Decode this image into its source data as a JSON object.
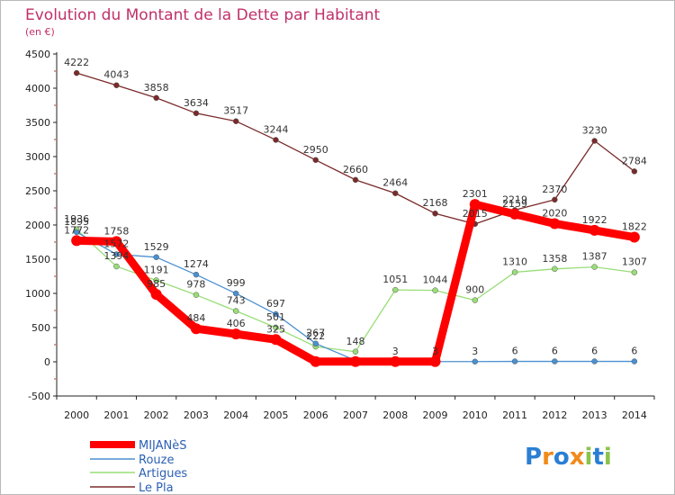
{
  "chart_data": {
    "type": "line",
    "title": "Evolution du Montant de la Dette par Habitant",
    "subtitle": "(en €)",
    "xlabel": "",
    "ylabel": "",
    "ylim": [
      -500,
      4500
    ],
    "ytick_step": 500,
    "grid": false,
    "legend_position": "bottom-left",
    "x": [
      "2000",
      "2001",
      "2002",
      "2003",
      "2004",
      "2005",
      "2006",
      "2007",
      "2008",
      "2009",
      "2010",
      "2011",
      "2012",
      "2013",
      "2014"
    ],
    "series": [
      {
        "name": "MIJANèS",
        "color": "#ff0000",
        "values": [
          1772,
          1758,
          985,
          484,
          406,
          325,
          3,
          3,
          3,
          3,
          2301,
          2159,
          2020,
          1922,
          1822
        ],
        "labels": [
          "1772",
          "1758",
          "985",
          "484",
          "406",
          "325",
          "",
          "",
          "3",
          "3",
          "2301",
          "2159",
          "2020",
          "1922",
          "1822"
        ]
      },
      {
        "name": "Rouze",
        "color": "#4a90d0",
        "values": [
          1895,
          1572,
          1529,
          1274,
          999,
          697,
          267,
          20,
          3,
          3,
          3,
          6,
          6,
          6,
          6
        ],
        "labels": [
          "1895",
          "1572",
          "1529",
          "1274",
          "999",
          "697",
          "267",
          "",
          "",
          "",
          "3",
          "6",
          "6",
          "6",
          "6"
        ]
      },
      {
        "name": "Artigues",
        "color": "#99dd77",
        "values": [
          1936,
          1394,
          1191,
          978,
          743,
          501,
          222,
          148,
          1051,
          1044,
          900,
          1310,
          1358,
          1387,
          1307
        ],
        "labels": [
          "1936",
          "1394",
          "1191",
          "978",
          "743",
          "501",
          "222",
          "148",
          "1051",
          "1044",
          "900",
          "1310",
          "1358",
          "1387",
          "1307"
        ]
      },
      {
        "name": "Le Pla",
        "color": "#7a2a2a",
        "values": [
          4222,
          4043,
          3858,
          3634,
          3517,
          3244,
          2950,
          2660,
          2464,
          2168,
          2015,
          2219,
          2370,
          3230,
          2784
        ],
        "labels": [
          "4222",
          "4043",
          "3858",
          "3634",
          "3517",
          "3244",
          "2950",
          "2660",
          "2464",
          "2168",
          "2015",
          "2219",
          "2370",
          "3230",
          "2784"
        ]
      }
    ]
  },
  "brand": {
    "letters": [
      "P",
      "r",
      "o",
      "x",
      "i",
      "t",
      "i"
    ],
    "colors": [
      "#2a7fd4",
      "#f08a1c",
      "#2a7fd4",
      "#f08a1c",
      "#8bc34a",
      "#2a7fd4",
      "#8bc34a"
    ]
  }
}
